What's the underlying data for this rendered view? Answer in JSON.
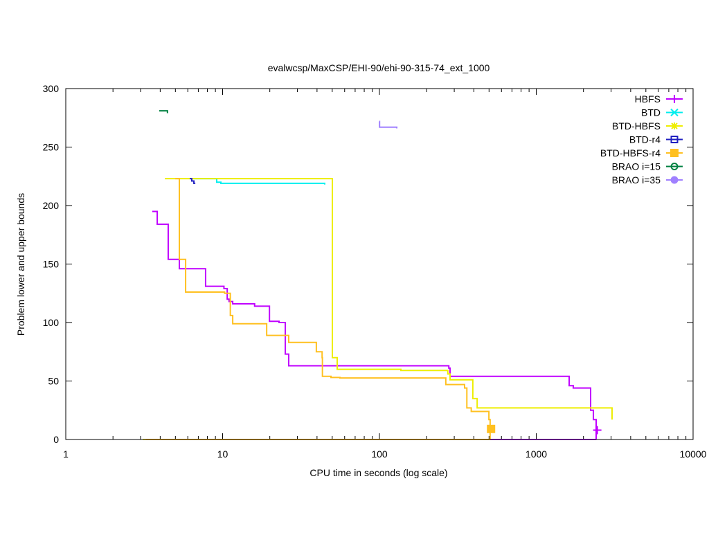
{
  "chart_data": {
    "type": "line",
    "title": "evalwcsp/MaxCSP/EHI-90/ehi-90-315-74_ext_1000",
    "xlabel": "CPU time in seconds (log scale)",
    "ylabel": "Problem lower and upper bounds",
    "xscale": "log",
    "xlim": [
      1,
      10000
    ],
    "ylim": [
      0,
      300
    ],
    "xticks": [
      1,
      10,
      100,
      1000,
      10000
    ],
    "xtick_labels": [
      "1",
      "10",
      "100",
      "1000",
      "10000"
    ],
    "yticks": [
      0,
      50,
      100,
      150,
      200,
      250,
      300
    ],
    "ytick_labels": [
      "0",
      "50",
      "100",
      "150",
      "200",
      "250",
      "300"
    ],
    "grid": false,
    "legend_position": "top-right",
    "series": [
      {
        "name": "HBFS",
        "color": "#c000ff",
        "marker": "plus",
        "upper": [
          [
            3.56,
            195
          ],
          [
            3.83,
            184
          ],
          [
            4.5,
            154
          ],
          [
            5.3,
            146
          ],
          [
            7.79,
            131
          ],
          [
            10.2,
            129
          ],
          [
            10.7,
            120
          ],
          [
            11.0,
            118
          ],
          [
            11.6,
            116
          ],
          [
            16.0,
            114
          ],
          [
            19.9,
            101
          ],
          [
            22.9,
            100
          ],
          [
            25.1,
            73
          ],
          [
            26.4,
            63
          ],
          [
            277,
            61
          ],
          [
            282,
            54
          ],
          [
            1622,
            46
          ],
          [
            1722,
            44
          ],
          [
            2222,
            25
          ],
          [
            2314,
            17
          ],
          [
            2410,
            0
          ]
        ],
        "lower": [
          [
            508,
            0
          ],
          [
            2410,
            0
          ]
        ],
        "marker_point": [
          2450,
          8
        ]
      },
      {
        "name": "BTD",
        "color": "#00eeee",
        "marker": "cross",
        "upper": [
          [
            6.5,
            223
          ],
          [
            9.17,
            220
          ],
          [
            9.75,
            219
          ],
          [
            44.8,
            218
          ]
        ],
        "lower": [],
        "marker_point": null
      },
      {
        "name": "BTD-HBFS",
        "color": "#eeee00",
        "marker": "star",
        "upper": [
          [
            4.28,
            223
          ],
          [
            50.1,
            70
          ],
          [
            53.8,
            60
          ],
          [
            137,
            59
          ],
          [
            273,
            56
          ],
          [
            282,
            51
          ],
          [
            394,
            35
          ],
          [
            420,
            27
          ],
          [
            3043,
            17
          ]
        ],
        "lower": [
          [
            3.1,
            0
          ],
          [
            3.2,
            0
          ]
        ],
        "marker_point": null
      },
      {
        "name": "BTD-r4",
        "color": "#2020c0",
        "marker": "square-open",
        "upper": [
          [
            6.17,
            223
          ],
          [
            6.36,
            221
          ],
          [
            6.56,
            219
          ],
          [
            6.7,
            219
          ]
        ],
        "lower": [],
        "marker_point": null
      },
      {
        "name": "BTD-HBFS-r4",
        "color": "#ffc020",
        "marker": "square-filled",
        "upper": [
          [
            4.99,
            223
          ],
          [
            5.3,
            154
          ],
          [
            5.81,
            126
          ],
          [
            10.3,
            125
          ],
          [
            11.2,
            106
          ],
          [
            11.6,
            99
          ],
          [
            19.1,
            89
          ],
          [
            26.4,
            83
          ],
          [
            39.6,
            75
          ],
          [
            43.1,
            70
          ],
          [
            43.3,
            54
          ],
          [
            49.1,
            53
          ],
          [
            56,
            52.6
          ],
          [
            265,
            47
          ],
          [
            349,
            44
          ],
          [
            361,
            27
          ],
          [
            385,
            24
          ],
          [
            499,
            17
          ],
          [
            508,
            0
          ]
        ],
        "lower": [
          [
            3.22,
            0
          ],
          [
            508,
            0
          ]
        ],
        "marker_point": [
          515,
          9
        ]
      },
      {
        "name": "BRAO i=15",
        "color": "#008040",
        "marker": "circle-open",
        "upper": [
          [
            3.94,
            281
          ],
          [
            4.45,
            279
          ]
        ],
        "lower": [],
        "marker_point": null
      },
      {
        "name": "BRAO i=35",
        "color": "#a080ff",
        "marker": "circle-filled",
        "upper": [
          [
            100,
            272
          ],
          [
            100.2,
            267
          ],
          [
            129,
            266
          ]
        ],
        "lower": [],
        "marker_point": null
      }
    ]
  }
}
